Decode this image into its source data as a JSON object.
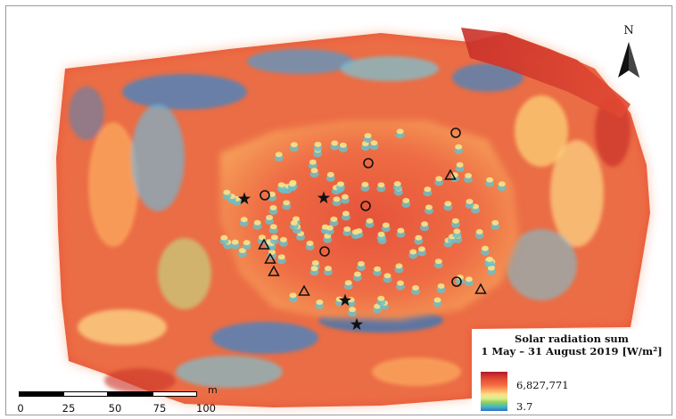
{
  "north_arrow": {
    "letter": "N",
    "icon": "north-arrow-icon"
  },
  "legend": {
    "title_line1": "Solar radiation sum",
    "title_line2": "1 May – 31 August 2019 [W/m²]",
    "max_label": "6,827,771",
    "min_label": "3.7",
    "ramp_colors": [
      "#b2182b",
      "#e34a33",
      "#f46d43",
      "#fdae61",
      "#fee08b",
      "#d9ef8b",
      "#91cf60",
      "#3fb5c8",
      "#2c6fc9"
    ]
  },
  "scale_bar": {
    "unit": "m",
    "ticks": [
      "0",
      "25",
      "50",
      "75",
      "100"
    ]
  },
  "markers": {
    "star_icon": "star-marker-icon",
    "circle_icon": "circle-marker-icon",
    "triangle_icon": "triangle-marker-icon"
  }
}
